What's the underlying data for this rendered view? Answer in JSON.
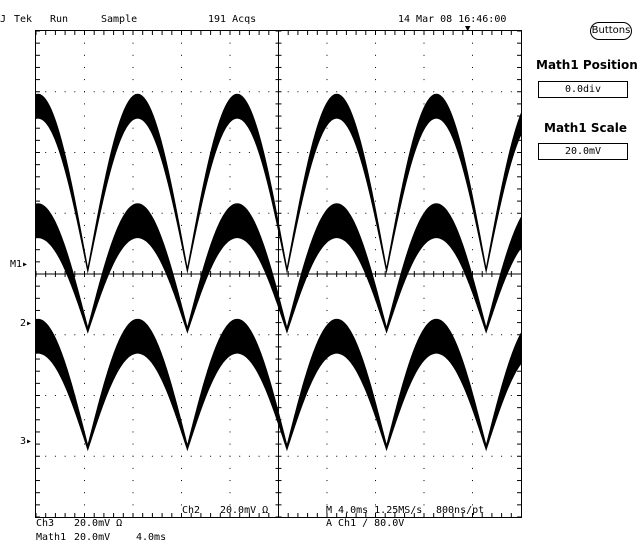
{
  "header": {
    "brand": "Tek",
    "state": "Run",
    "mode": "Sample",
    "acqs": "191 Acqs",
    "datetime": "14 Mar 08 16:46:00"
  },
  "side_panel": {
    "buttons_label": "Buttons",
    "math1_position_title": "Math1 Position",
    "math1_position_value": "0.0div",
    "math1_scale_title": "Math1 Scale",
    "math1_scale_value": "20.0mV"
  },
  "markers": {
    "m1": "M1",
    "ch2": "2",
    "ch3": "3"
  },
  "readout": {
    "ch3_label": "Ch3",
    "ch3_scale": "20.0mV  Ω",
    "math1_label": "Math1",
    "math1_scale": "20.0mV",
    "math1_time": "4.0ms",
    "ch2_label": "Ch2",
    "ch2_scale": "20.0mV  Ω",
    "horiz": "M 4.0ms 1.25MS/s",
    "sample_interval": "800ns/pt",
    "trigger": "A  Ch1  ∕  80.0V"
  },
  "colors": {
    "trace": "#000000",
    "grid": "#000000",
    "background": "#ffffff"
  }
}
